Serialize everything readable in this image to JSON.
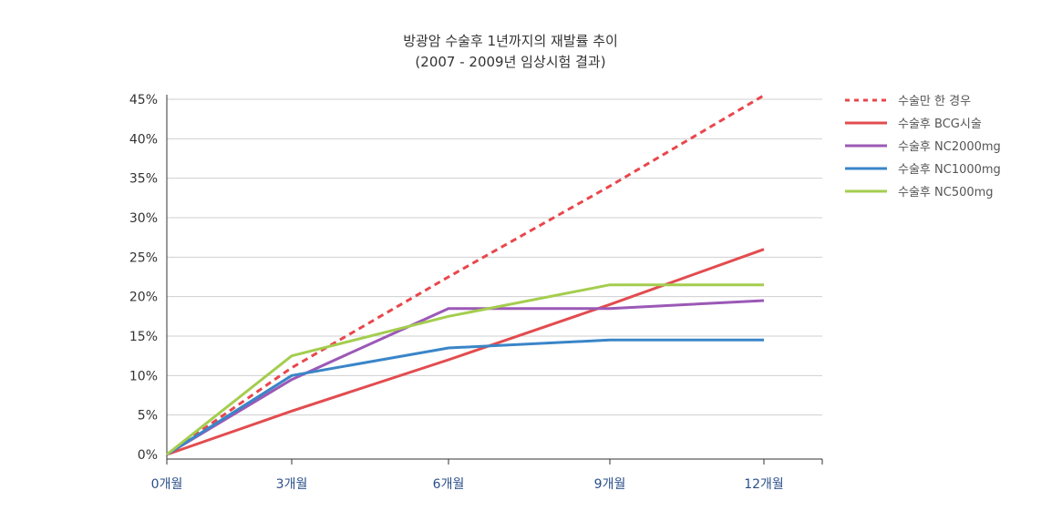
{
  "chart_data": {
    "type": "line",
    "title_line1": "방광암 수술후 1년까지의 재발률 추이",
    "title_line2": "(2007 - 2009년 임상시험 결과)",
    "categories": [
      "0개월",
      "3개월",
      "6개월",
      "9개월",
      "12개월"
    ],
    "x_months": [
      0,
      3,
      6,
      9,
      12
    ],
    "ylim": [
      0,
      45
    ],
    "y_ticks": [
      {
        "value": 0,
        "label": "0%"
      },
      {
        "value": 5,
        "label": "5%"
      },
      {
        "value": 10,
        "label": "10%"
      },
      {
        "value": 15,
        "label": "15%"
      },
      {
        "value": 20,
        "label": "20%"
      },
      {
        "value": 25,
        "label": "25%"
      },
      {
        "value": 30,
        "label": "30%"
      },
      {
        "value": 35,
        "label": "35%"
      },
      {
        "value": 40,
        "label": "40%"
      },
      {
        "value": 45,
        "label": "45%"
      }
    ],
    "grid": true,
    "legend_position": "top-right",
    "series": [
      {
        "name": "수술만 한 경우",
        "color": "#e8474c",
        "dashed": true,
        "values": [
          0,
          11,
          22.5,
          34,
          45.5
        ]
      },
      {
        "name": "수술후 BCG시술",
        "color": "#e24c4f",
        "dashed": false,
        "values": [
          0,
          5.5,
          12,
          19,
          26
        ]
      },
      {
        "name": "수술후 NC2000mg",
        "color": "#9b59b6",
        "dashed": false,
        "values": [
          0,
          9.5,
          18.5,
          18.5,
          19.5
        ]
      },
      {
        "name": "수술후 NC1000mg",
        "color": "#3a85c8",
        "dashed": false,
        "values": [
          0,
          10,
          13.5,
          14.5,
          14.5
        ]
      },
      {
        "name": "수술후 NC500mg",
        "color": "#a4cd4e",
        "dashed": false,
        "values": [
          0,
          12.5,
          17.5,
          21.5,
          21.5
        ]
      }
    ]
  }
}
